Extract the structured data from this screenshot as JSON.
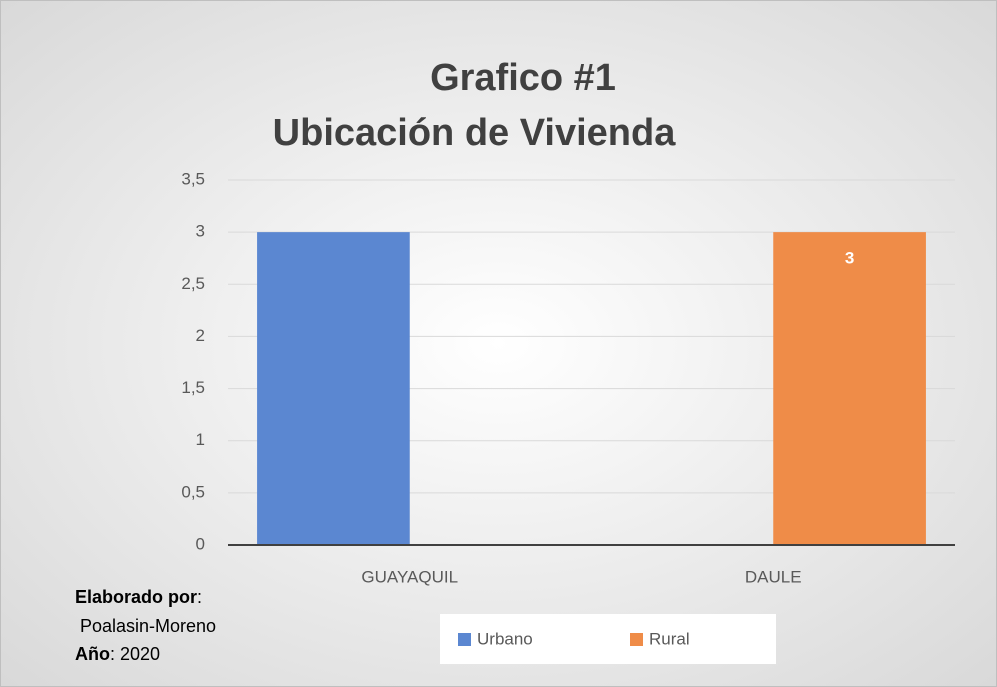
{
  "chart_data": {
    "type": "bar",
    "title": [
      "Grafico #1",
      "Ubicación de Vivienda"
    ],
    "categories": [
      "GUAYAQUIL",
      "DAULE"
    ],
    "series": [
      {
        "name": "Urbano",
        "color": "#5b87d1",
        "values": [
          3,
          null
        ]
      },
      {
        "name": "Rural",
        "color": "#ef8c48",
        "values": [
          null,
          3
        ],
        "data_labels": true
      }
    ],
    "ylim": [
      0,
      3.5
    ],
    "yticks": [
      0,
      {
        "value": 0.5,
        "label": "0,5"
      },
      1,
      {
        "value": 1.5,
        "label": "1,5"
      },
      2,
      {
        "value": 2.5,
        "label": "2,5"
      },
      3,
      {
        "value": 3.5,
        "label": "3,5"
      }
    ],
    "grid": true,
    "legend": "bottom",
    "notes": [
      {
        "bold": "Elaborado por",
        "text": ":"
      },
      {
        "text": "Poalasin-Moreno"
      },
      {
        "bold": "Año",
        "text": ": 2020"
      }
    ]
  }
}
